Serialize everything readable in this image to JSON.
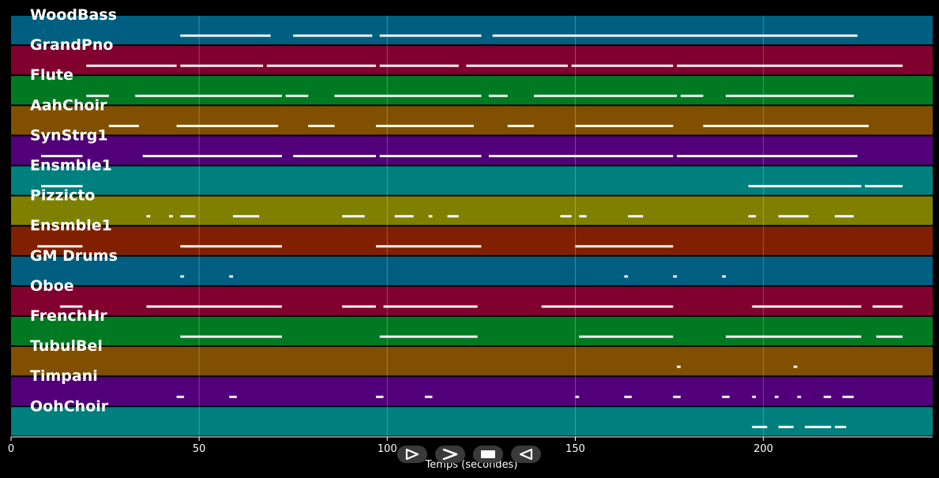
{
  "chart_data": {
    "type": "piano-roll",
    "xlabel": "Temps (secondes)",
    "xlim": [
      0,
      245
    ],
    "xticks": [
      0,
      50,
      100,
      150,
      200
    ],
    "grid": true,
    "tracks": [
      {
        "name": "WoodBass",
        "color": "#005f80",
        "segments": [
          [
            45,
            69
          ],
          [
            75,
            96
          ],
          [
            98,
            125
          ],
          [
            128,
            225
          ]
        ]
      },
      {
        "name": "GrandPno",
        "color": "#80002e",
        "segments": [
          [
            20,
            44
          ],
          [
            45,
            67
          ],
          [
            68,
            97
          ],
          [
            98,
            119
          ],
          [
            121,
            148
          ],
          [
            149,
            176
          ],
          [
            177,
            237
          ]
        ]
      },
      {
        "name": "Flute",
        "color": "#007a22",
        "segments": [
          [
            20,
            26
          ],
          [
            33,
            72
          ],
          [
            73,
            79
          ],
          [
            86,
            125
          ],
          [
            127,
            132
          ],
          [
            139,
            177
          ],
          [
            178,
            184
          ],
          [
            190,
            224
          ]
        ]
      },
      {
        "name": "AahChoir",
        "color": "#805000",
        "segments": [
          [
            26,
            34
          ],
          [
            44,
            71
          ],
          [
            79,
            86
          ],
          [
            97,
            123
          ],
          [
            132,
            139
          ],
          [
            150,
            176
          ],
          [
            184,
            228
          ]
        ]
      },
      {
        "name": "SynStrg1",
        "color": "#52007a",
        "segments": [
          [
            8,
            19
          ],
          [
            35,
            72
          ],
          [
            75,
            97
          ],
          [
            98,
            125
          ],
          [
            127,
            176
          ],
          [
            177,
            225
          ]
        ]
      },
      {
        "name": "Ensmble1",
        "color": "#007f7f",
        "segments": [
          [
            8,
            19
          ],
          [
            196,
            226
          ],
          [
            227,
            237
          ]
        ]
      },
      {
        "name": "Pizzicto",
        "color": "#808000",
        "segments": [
          [
            36,
            37
          ],
          [
            42,
            43
          ],
          [
            45,
            49
          ],
          [
            59,
            66
          ],
          [
            88,
            94
          ],
          [
            102,
            107
          ],
          [
            111,
            112
          ],
          [
            116,
            119
          ],
          [
            146,
            149
          ],
          [
            151,
            153
          ],
          [
            164,
            168
          ],
          [
            196,
            198
          ],
          [
            204,
            212
          ],
          [
            219,
            224
          ]
        ]
      },
      {
        "name": "Ensmble1",
        "color": "#802000",
        "segments": [
          [
            7,
            19
          ],
          [
            45,
            72
          ],
          [
            97,
            125
          ],
          [
            150,
            176
          ]
        ]
      },
      {
        "name": "GM Drums",
        "color": "#005f80",
        "segments": [
          [
            45,
            46
          ],
          [
            58,
            59
          ],
          [
            163,
            164
          ],
          [
            176,
            177
          ],
          [
            189,
            190
          ]
        ]
      },
      {
        "name": "Oboe",
        "color": "#80002e",
        "segments": [
          [
            13,
            19
          ],
          [
            36,
            72
          ],
          [
            88,
            97
          ],
          [
            99,
            124
          ],
          [
            141,
            176
          ],
          [
            197,
            226
          ],
          [
            229,
            237
          ]
        ]
      },
      {
        "name": "FrenchHr",
        "color": "#007a22",
        "segments": [
          [
            45,
            72
          ],
          [
            98,
            124
          ],
          [
            151,
            176
          ],
          [
            190,
            226
          ],
          [
            230,
            237
          ]
        ]
      },
      {
        "name": "TubulBel",
        "color": "#805000",
        "segments": [
          [
            177,
            178
          ],
          [
            208,
            209
          ]
        ]
      },
      {
        "name": "Timpani",
        "color": "#52007a",
        "segments": [
          [
            44,
            46
          ],
          [
            58,
            60
          ],
          [
            97,
            99
          ],
          [
            110,
            112
          ],
          [
            150,
            151
          ],
          [
            163,
            165
          ],
          [
            176,
            178
          ],
          [
            189,
            191
          ],
          [
            197,
            198
          ],
          [
            203,
            204
          ],
          [
            209,
            210
          ],
          [
            216,
            218
          ],
          [
            221,
            224
          ]
        ]
      },
      {
        "name": "OohChoir",
        "color": "#007f7f",
        "segments": [
          [
            197,
            201
          ],
          [
            204,
            208
          ],
          [
            211,
            218
          ],
          [
            219,
            222
          ]
        ]
      }
    ]
  },
  "controls": {
    "play": "play-icon",
    "forward": "fast-forward-icon",
    "stop": "stop-icon",
    "rewind": "rewind-icon"
  }
}
